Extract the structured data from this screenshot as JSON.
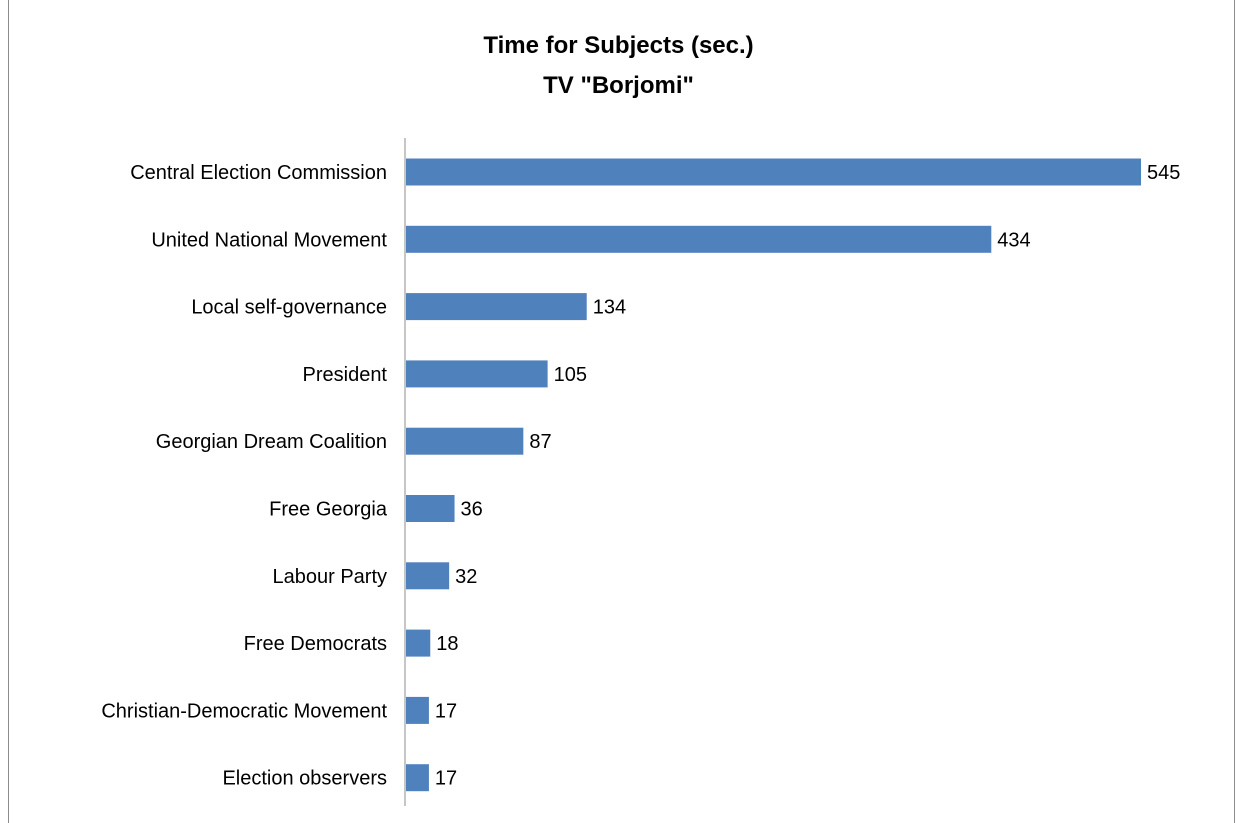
{
  "chart_data": {
    "type": "bar",
    "orientation": "horizontal",
    "title": "Time for Subjects (sec.)",
    "subtitle": "TV \"Borjomi\"",
    "categories": [
      "Central Election Commission",
      "United National Movement",
      "Local self-governance",
      "President",
      "Georgian Dream Coalition",
      "Free Georgia",
      "Labour Party",
      "Free Democrats",
      "Christian-Democratic Movement",
      "Election observers"
    ],
    "values": [
      545,
      434,
      134,
      105,
      87,
      36,
      32,
      18,
      17,
      17
    ],
    "data_labels": true,
    "bar_color": "#4f81bd",
    "xlim": [
      0,
      545
    ],
    "grid": false,
    "legend": "none"
  }
}
